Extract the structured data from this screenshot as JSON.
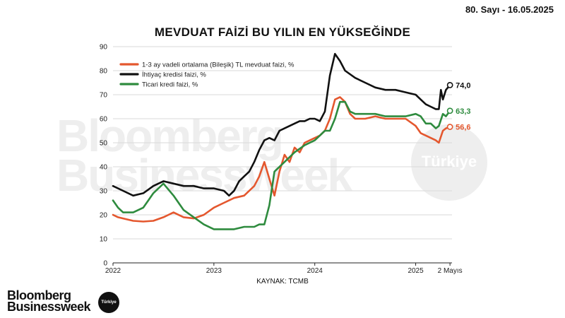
{
  "header": {
    "issue": "80. Sayı - 16.05.2025"
  },
  "watermark": {
    "line1": "Bloomberg",
    "line2": "Businessweek",
    "badge": "Türkiye"
  },
  "footer": {
    "source": "KAYNAK: TCMB",
    "logo_line1": "Bloomberg",
    "logo_line2": "Businessweek",
    "logo_badge": "Türkiye"
  },
  "chart_data": {
    "type": "line",
    "title": "MEVDUAT FAİZİ BU YILIN EN YÜKSEĞİNDE",
    "xlabel": "",
    "ylabel": "",
    "xlim": [
      2022.0,
      2025.36
    ],
    "ylim": [
      0,
      90
    ],
    "y_ticks": [
      0,
      10,
      20,
      30,
      40,
      50,
      60,
      70,
      80,
      90
    ],
    "x_ticks": [
      {
        "x": 2022.0,
        "label": "2022"
      },
      {
        "x": 2023.0,
        "label": "2023"
      },
      {
        "x": 2024.0,
        "label": "2024"
      },
      {
        "x": 2025.0,
        "label": "2025"
      },
      {
        "x": 2025.34,
        "label": "2 Mayıs"
      }
    ],
    "grid": "horizontal",
    "legend_position": "top-left",
    "series": [
      {
        "name": "1-3 ay vadeli ortalama (Bileşik) TL mevduat faizi, %",
        "color": "#e4572e",
        "end_label": "56,6",
        "x": [
          2022.0,
          2022.05,
          2022.1,
          2022.2,
          2022.3,
          2022.4,
          2022.5,
          2022.55,
          2022.6,
          2022.7,
          2022.8,
          2022.9,
          2023.0,
          2023.1,
          2023.2,
          2023.3,
          2023.4,
          2023.45,
          2023.5,
          2023.55,
          2023.6,
          2023.65,
          2023.7,
          2023.75,
          2023.8,
          2023.85,
          2023.9,
          2023.95,
          2024.0,
          2024.05,
          2024.1,
          2024.15,
          2024.2,
          2024.25,
          2024.3,
          2024.35,
          2024.4,
          2024.5,
          2024.6,
          2024.7,
          2024.8,
          2024.9,
          2025.0,
          2025.05,
          2025.1,
          2025.15,
          2025.2,
          2025.23,
          2025.27,
          2025.3,
          2025.34
        ],
        "values": [
          20,
          19,
          18.5,
          17.5,
          17.2,
          17.5,
          19,
          20,
          21,
          19,
          18.5,
          20,
          23,
          25,
          27,
          28,
          32,
          36,
          42,
          35,
          28,
          38,
          45,
          42,
          48,
          46,
          50,
          51,
          52,
          53,
          55,
          60,
          68,
          69,
          67,
          62,
          60,
          60,
          61,
          60,
          60,
          60,
          57,
          54,
          53,
          52,
          51,
          50,
          55,
          56,
          56.6
        ]
      },
      {
        "name": "İhtiyaç kredisi faizi, %",
        "color": "#111111",
        "end_label": "74,0",
        "x": [
          2022.0,
          2022.1,
          2022.2,
          2022.3,
          2022.4,
          2022.5,
          2022.6,
          2022.7,
          2022.8,
          2022.9,
          2023.0,
          2023.1,
          2023.15,
          2023.2,
          2023.25,
          2023.3,
          2023.35,
          2023.4,
          2023.45,
          2023.5,
          2023.55,
          2023.6,
          2023.65,
          2023.7,
          2023.75,
          2023.8,
          2023.85,
          2023.9,
          2023.95,
          2024.0,
          2024.05,
          2024.1,
          2024.15,
          2024.2,
          2024.25,
          2024.3,
          2024.4,
          2024.5,
          2024.6,
          2024.7,
          2024.8,
          2024.9,
          2025.0,
          2025.05,
          2025.1,
          2025.15,
          2025.2,
          2025.23,
          2025.25,
          2025.27,
          2025.3,
          2025.34
        ],
        "values": [
          32,
          30,
          28,
          29,
          32,
          34,
          33,
          32,
          32,
          31,
          31,
          30,
          28,
          30,
          34,
          36,
          38,
          42,
          47,
          51,
          52,
          51,
          55,
          56,
          57,
          58,
          59,
          59,
          60,
          60,
          59,
          63,
          78,
          87,
          84,
          80,
          77,
          75,
          73,
          72,
          72,
          71,
          70,
          68,
          66,
          65,
          64,
          64,
          72,
          68,
          72,
          74.0
        ]
      },
      {
        "name": "Ticari kredi faizi, %",
        "color": "#2e8b3e",
        "end_label": "63,3",
        "x": [
          2022.0,
          2022.05,
          2022.1,
          2022.2,
          2022.3,
          2022.35,
          2022.4,
          2022.5,
          2022.6,
          2022.7,
          2022.8,
          2022.9,
          2023.0,
          2023.1,
          2023.2,
          2023.3,
          2023.35,
          2023.4,
          2023.45,
          2023.5,
          2023.55,
          2023.6,
          2023.7,
          2023.8,
          2023.9,
          2024.0,
          2024.05,
          2024.1,
          2024.15,
          2024.2,
          2024.25,
          2024.3,
          2024.35,
          2024.4,
          2024.5,
          2024.6,
          2024.7,
          2024.8,
          2024.9,
          2025.0,
          2025.05,
          2025.1,
          2025.15,
          2025.2,
          2025.23,
          2025.27,
          2025.3,
          2025.34
        ],
        "values": [
          26,
          23,
          21,
          21,
          23,
          26,
          29,
          33,
          28,
          22,
          19,
          16,
          14,
          14,
          14,
          15,
          15,
          15,
          16,
          16,
          24,
          38,
          42,
          46,
          49,
          51,
          53,
          55,
          55,
          60,
          67,
          67,
          63,
          62,
          62,
          62,
          61,
          61,
          61,
          62,
          61,
          58,
          58,
          56,
          57,
          62,
          61,
          63.3
        ]
      }
    ]
  }
}
